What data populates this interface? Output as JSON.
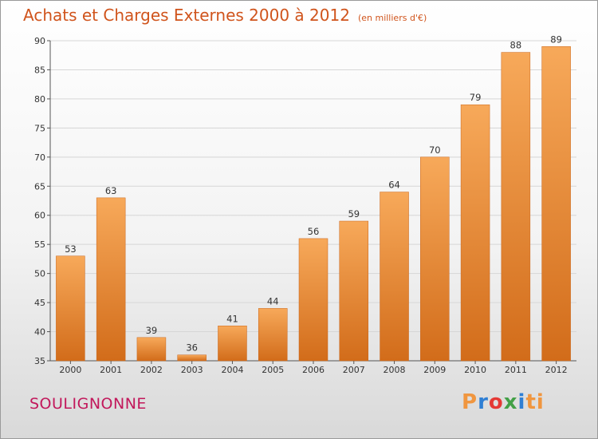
{
  "chart_data": {
    "type": "bar",
    "title": "Achats et Charges Externes 2000 à 2012",
    "subtitle": "(en milliers d'€)",
    "categories": [
      "2000",
      "2001",
      "2002",
      "2003",
      "2004",
      "2005",
      "2006",
      "2007",
      "2008",
      "2009",
      "2010",
      "2011",
      "2012"
    ],
    "values": [
      53,
      63,
      39,
      36,
      41,
      44,
      56,
      59,
      64,
      70,
      79,
      88,
      89
    ],
    "ylim": [
      35,
      90
    ],
    "yticks": [
      35,
      40,
      45,
      50,
      55,
      60,
      65,
      70,
      75,
      80,
      85,
      90
    ],
    "grid": true,
    "bar_color": "#f0963f"
  },
  "footer": {
    "place_name": "SOULIGNONNE",
    "brand": "Proxiti",
    "brand_letter_colors": [
      "#f0963f",
      "#2f7fd4",
      "#e53935",
      "#43a047",
      "#2f7fd4",
      "#f0963f",
      "#f0963f"
    ]
  }
}
